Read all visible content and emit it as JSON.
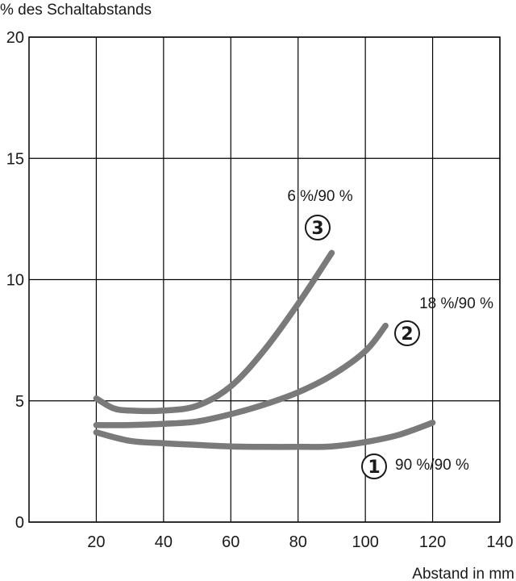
{
  "chart_data": {
    "type": "line",
    "title": "",
    "ylabel": "% des Schaltabstands",
    "xlabel": "Abstand in mm",
    "xlim": [
      0,
      140
    ],
    "ylim": [
      0,
      20
    ],
    "xticks": [
      20,
      40,
      60,
      80,
      100,
      120,
      140
    ],
    "yticks": [
      0,
      5,
      10,
      15,
      20
    ],
    "grid": true,
    "line_color": "#7a7a7a",
    "series": [
      {
        "name": "90 %/90 %",
        "marker": "1",
        "points": [
          [
            20,
            3.7
          ],
          [
            30,
            3.35
          ],
          [
            40,
            3.25
          ],
          [
            50,
            3.18
          ],
          [
            60,
            3.12
          ],
          [
            70,
            3.1
          ],
          [
            80,
            3.1
          ],
          [
            90,
            3.12
          ],
          [
            100,
            3.3
          ],
          [
            110,
            3.6
          ],
          [
            120,
            4.1
          ]
        ]
      },
      {
        "name": "18 %/90 %",
        "marker": "2",
        "points": [
          [
            20,
            4.0
          ],
          [
            30,
            4.0
          ],
          [
            40,
            4.05
          ],
          [
            50,
            4.15
          ],
          [
            60,
            4.45
          ],
          [
            70,
            4.85
          ],
          [
            80,
            5.35
          ],
          [
            90,
            6.05
          ],
          [
            100,
            7.05
          ],
          [
            106,
            8.1
          ]
        ]
      },
      {
        "name": "6 %/90 %",
        "marker": "3",
        "points": [
          [
            20,
            5.1
          ],
          [
            25,
            4.7
          ],
          [
            30,
            4.6
          ],
          [
            40,
            4.6
          ],
          [
            50,
            4.8
          ],
          [
            60,
            5.6
          ],
          [
            70,
            7.1
          ],
          [
            80,
            9.0
          ],
          [
            90,
            11.1
          ]
        ]
      }
    ]
  }
}
